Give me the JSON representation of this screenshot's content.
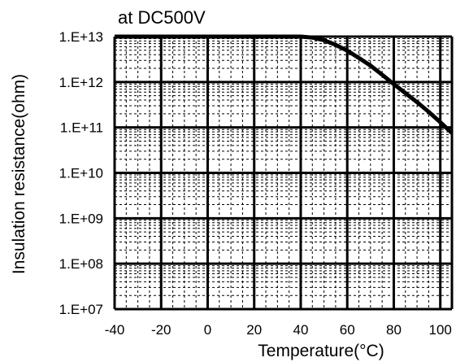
{
  "chart_data": {
    "type": "line",
    "title": "at DC500V",
    "xlabel": "Temperature(°C)",
    "ylabel": "Insulation resistance(ohm)",
    "xlim": [
      -40,
      105
    ],
    "x_ticks": [
      -40,
      -20,
      0,
      20,
      40,
      60,
      80,
      100
    ],
    "x_tick_labels": [
      "-40",
      "-20",
      "0",
      "20",
      "40",
      "60",
      "80",
      "100"
    ],
    "y_scale": "log",
    "ylim": [
      10000000.0,
      10000000000000.0
    ],
    "y_ticks": [
      10000000.0,
      100000000.0,
      1000000000.0,
      10000000000.0,
      100000000000.0,
      1000000000000.0,
      10000000000000.0
    ],
    "y_tick_labels": [
      "1.E+07",
      "1.E+08",
      "1.E+09",
      "1.E+10",
      "1.E+11",
      "1.E+12",
      "1.E+13"
    ],
    "grid": true,
    "legend": "none",
    "series": [
      {
        "x": [
          -40,
          -20,
          0,
          20,
          40,
          45,
          50,
          55,
          60,
          65,
          70,
          75,
          80,
          85,
          90,
          95,
          100,
          105
        ],
        "y": [
          10000000000000.0,
          10000000000000.0,
          10000000000000.0,
          10000000000000.0,
          10000000000000.0,
          9500000000000.0,
          8300000000000.0,
          6600000000000.0,
          4900000000000.0,
          3400000000000.0,
          2300000000000.0,
          1450000000000.0,
          900000000000.0,
          570000000000.0,
          360000000000.0,
          220000000000.0,
          130000000000.0,
          75000000000.0
        ]
      }
    ]
  }
}
